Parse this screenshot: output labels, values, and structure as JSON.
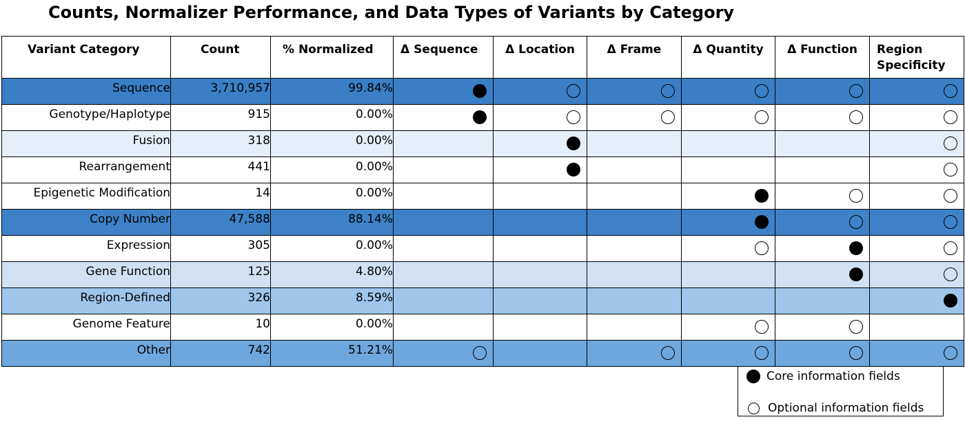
{
  "title": "Counts, Normalizer Performance, and Data Types of Variants by Category",
  "headers": [
    "Variant Category",
    "Count",
    "% Normalized",
    "Δ Sequence",
    "Δ Location",
    "Δ Frame",
    "Δ Quantity",
    "Δ Function",
    "Region Specificity"
  ],
  "rows": [
    {
      "category": "Sequence",
      "count": "3,710,957",
      "pct": "99.84%",
      "bg": "#3a7ec6",
      "marks": [
        "core",
        "optional",
        "optional",
        "optional",
        "optional",
        "optional"
      ]
    },
    {
      "category": "Genotype/Haplotype",
      "count": "915",
      "pct": "0.00%",
      "bg": "#ffffff",
      "marks": [
        "core",
        "optional",
        "optional",
        "optional",
        "optional",
        "optional"
      ]
    },
    {
      "category": "Fusion",
      "count": "318",
      "pct": "0.00%",
      "bg": "#e6eff9",
      "marks": [
        "",
        "core",
        "",
        "",
        "",
        "optional"
      ]
    },
    {
      "category": "Rearrangement",
      "count": "441",
      "pct": "0.00%",
      "bg": "#ffffff",
      "marks": [
        "",
        "core",
        "",
        "",
        "",
        "optional"
      ]
    },
    {
      "category": "Epigenetic Modification",
      "count": "14",
      "pct": "0.00%",
      "bg": "#ffffff",
      "marks": [
        "",
        "",
        "",
        "core",
        "optional",
        "optional"
      ]
    },
    {
      "category": "Copy Number",
      "count": "47,588",
      "pct": "88.14%",
      "bg": "#3d82c8",
      "marks": [
        "",
        "",
        "",
        "core",
        "optional",
        "optional"
      ]
    },
    {
      "category": "Expression",
      "count": "305",
      "pct": "0.00%",
      "bg": "#ffffff",
      "marks": [
        "",
        "",
        "",
        "optional",
        "core",
        "optional"
      ]
    },
    {
      "category": "Gene Function",
      "count": "125",
      "pct": "4.80%",
      "bg": "#cfe1f3",
      "marks": [
        "",
        "",
        "",
        "",
        "core",
        "optional"
      ]
    },
    {
      "category": "Region-Defined",
      "count": "326",
      "pct": "8.59%",
      "bg": "#9fc5ea",
      "marks": [
        "",
        "",
        "",
        "",
        "",
        "core"
      ]
    },
    {
      "category": "Genome Feature",
      "count": "10",
      "pct": "0.00%",
      "bg": "#ffffff",
      "marks": [
        "",
        "",
        "",
        "optional",
        "optional",
        ""
      ]
    },
    {
      "category": "Other",
      "count": "742",
      "pct": "51.21%",
      "bg": "#6ea7de",
      "marks": [
        "optional",
        "",
        "optional",
        "optional",
        "optional",
        "optional"
      ]
    }
  ],
  "legend": {
    "core_label": "Core information fields",
    "optional_label": "Optional information fields"
  }
}
